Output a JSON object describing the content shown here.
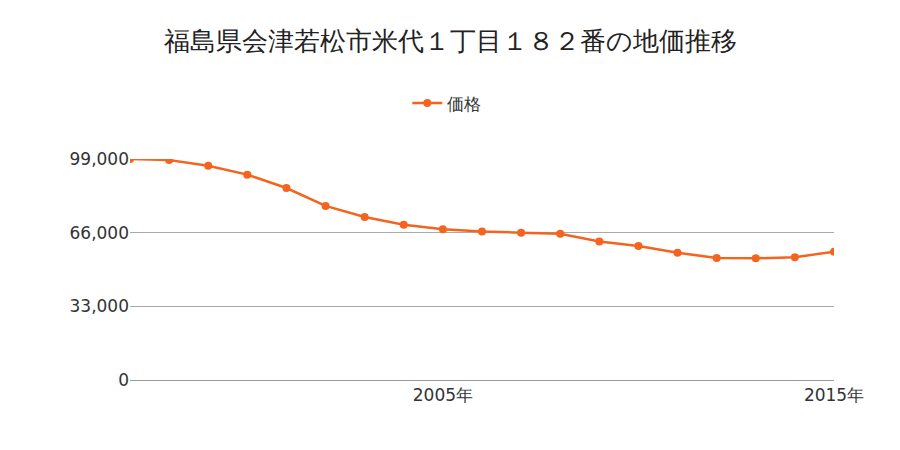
{
  "chart_data": {
    "type": "line",
    "title": "福島県会津若松市米代１丁目１８２番の地価推移",
    "x": [
      1997,
      1998,
      1999,
      2000,
      2001,
      2002,
      2003,
      2004,
      2005,
      2006,
      2007,
      2008,
      2009,
      2010,
      2011,
      2012,
      2013,
      2014,
      2015
    ],
    "series": [
      {
        "name": "価格",
        "color": "#f5641e",
        "marker": "circle",
        "line_style": "solid",
        "values": [
          99000,
          98500,
          96000,
          92000,
          86000,
          78000,
          73000,
          69500,
          67500,
          66500,
          66000,
          65500,
          62000,
          60000,
          57000,
          54700,
          54500,
          55000,
          57500
        ]
      }
    ],
    "xlim": [
      1997,
      2015
    ],
    "xticks": [
      {
        "value": 2005,
        "label": "2005年"
      },
      {
        "value": 2015,
        "label": "2015年"
      }
    ],
    "ylim": [
      0,
      99000
    ],
    "yticks": [
      0,
      {
        "value": 33000,
        "label": "33,000"
      },
      {
        "value": 66000,
        "label": "66,000"
      },
      {
        "value": 99000,
        "label": "99,000"
      }
    ],
    "grid": true,
    "legend": "top"
  }
}
